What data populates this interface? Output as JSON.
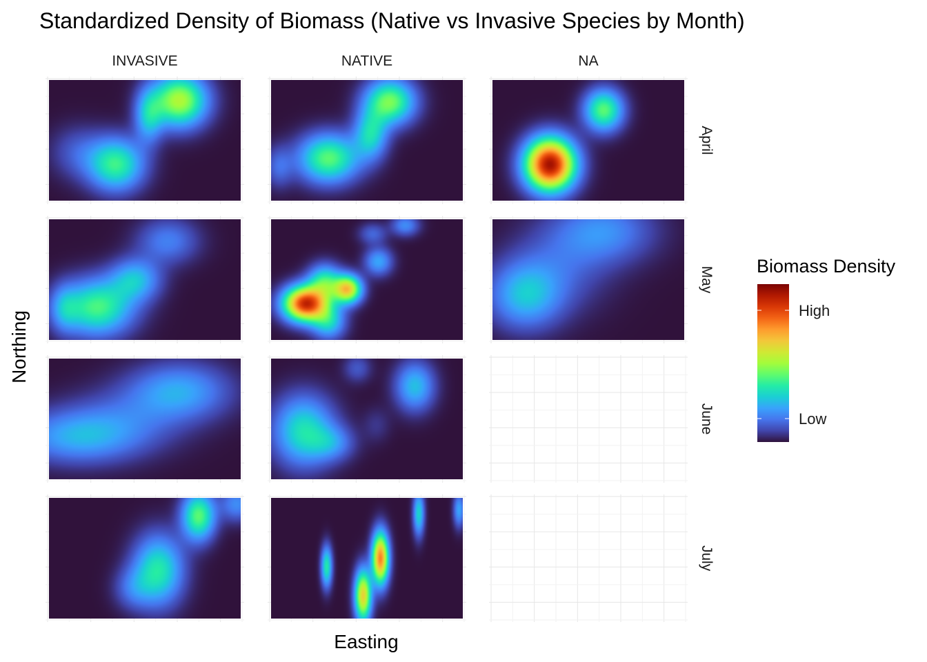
{
  "chart_data": {
    "type": "heatmap",
    "title": "Standardized Density of Biomass (Native vs Invasive Species by Month)",
    "xlabel": "Easting",
    "ylabel": "Northing",
    "columns": [
      "INVASIVE",
      "NATIVE",
      "NA"
    ],
    "rows": [
      "April",
      "May",
      "June",
      "July"
    ],
    "legend": {
      "title": "Biomass Density",
      "labels": [
        "High",
        "Low"
      ],
      "placement": "right"
    },
    "colormap": [
      "#30123b",
      "#4145ab",
      "#4675ed",
      "#39a2fc",
      "#1bcfd4",
      "#24eca6",
      "#61fc6c",
      "#a4fc3b",
      "#d1e834",
      "#f3c63a",
      "#fe9b2d",
      "#f36315",
      "#d93806",
      "#b11901",
      "#7a0403"
    ],
    "grid": true,
    "background_color": "#30123b",
    "panels": [
      {
        "column": "INVASIVE",
        "row": "April",
        "blobs": [
          {
            "x": 0.68,
            "y": 0.83,
            "sx": 0.1,
            "sy": 0.15,
            "a": 0.52
          },
          {
            "x": 0.52,
            "y": 0.7,
            "sx": 0.05,
            "sy": 0.15,
            "a": 0.25
          },
          {
            "x": 0.35,
            "y": 0.3,
            "sx": 0.1,
            "sy": 0.15,
            "a": 0.38
          },
          {
            "x": 0.15,
            "y": 0.4,
            "sx": 0.1,
            "sy": 0.15,
            "a": 0.1
          }
        ]
      },
      {
        "column": "NATIVE",
        "row": "April",
        "blobs": [
          {
            "x": 0.62,
            "y": 0.82,
            "sx": 0.09,
            "sy": 0.13,
            "a": 0.45
          },
          {
            "x": 0.52,
            "y": 0.55,
            "sx": 0.06,
            "sy": 0.14,
            "a": 0.3
          },
          {
            "x": 0.3,
            "y": 0.35,
            "sx": 0.11,
            "sy": 0.14,
            "a": 0.42
          },
          {
            "x": 0.04,
            "y": 0.28,
            "sx": 0.05,
            "sy": 0.12,
            "a": 0.12
          }
        ]
      },
      {
        "column": "NA",
        "row": "April",
        "blobs": [
          {
            "x": 0.3,
            "y": 0.3,
            "sx": 0.09,
            "sy": 0.15,
            "a": 0.95
          },
          {
            "x": 0.58,
            "y": 0.75,
            "sx": 0.07,
            "sy": 0.12,
            "a": 0.42
          }
        ]
      },
      {
        "column": "INVASIVE",
        "row": "May",
        "blobs": [
          {
            "x": 0.25,
            "y": 0.27,
            "sx": 0.13,
            "sy": 0.16,
            "a": 0.4
          },
          {
            "x": 0.45,
            "y": 0.5,
            "sx": 0.09,
            "sy": 0.12,
            "a": 0.25
          },
          {
            "x": 0.62,
            "y": 0.82,
            "sx": 0.11,
            "sy": 0.13,
            "a": 0.16
          },
          {
            "x": 0.08,
            "y": 0.26,
            "sx": 0.05,
            "sy": 0.13,
            "a": 0.15
          }
        ]
      },
      {
        "column": "NATIVE",
        "row": "May",
        "blobs": [
          {
            "x": 0.18,
            "y": 0.3,
            "sx": 0.08,
            "sy": 0.1,
            "a": 0.88
          },
          {
            "x": 0.4,
            "y": 0.42,
            "sx": 0.05,
            "sy": 0.08,
            "a": 0.62
          },
          {
            "x": 0.28,
            "y": 0.48,
            "sx": 0.06,
            "sy": 0.1,
            "a": 0.35
          },
          {
            "x": 0.3,
            "y": 0.15,
            "sx": 0.06,
            "sy": 0.1,
            "a": 0.28
          },
          {
            "x": 0.56,
            "y": 0.65,
            "sx": 0.05,
            "sy": 0.08,
            "a": 0.22
          },
          {
            "x": 0.53,
            "y": 0.88,
            "sx": 0.05,
            "sy": 0.06,
            "a": 0.12
          },
          {
            "x": 0.7,
            "y": 0.95,
            "sx": 0.05,
            "sy": 0.06,
            "a": 0.18
          }
        ]
      },
      {
        "column": "NA",
        "row": "May",
        "blobs": [
          {
            "x": 0.17,
            "y": 0.37,
            "sx": 0.13,
            "sy": 0.19,
            "a": 0.25
          },
          {
            "x": 0.58,
            "y": 0.9,
            "sx": 0.18,
            "sy": 0.18,
            "a": 0.18
          },
          {
            "x": 0.35,
            "y": 0.6,
            "sx": 0.18,
            "sy": 0.25,
            "a": 0.1
          }
        ]
      },
      {
        "column": "INVASIVE",
        "row": "June",
        "blobs": [
          {
            "x": 0.15,
            "y": 0.35,
            "sx": 0.22,
            "sy": 0.15,
            "a": 0.22
          },
          {
            "x": 0.68,
            "y": 0.73,
            "sx": 0.18,
            "sy": 0.16,
            "a": 0.22
          },
          {
            "x": 0.4,
            "y": 0.5,
            "sx": 0.22,
            "sy": 0.18,
            "a": 0.1
          }
        ]
      },
      {
        "column": "NATIVE",
        "row": "June",
        "blobs": [
          {
            "x": 0.17,
            "y": 0.4,
            "sx": 0.11,
            "sy": 0.2,
            "a": 0.33
          },
          {
            "x": 0.32,
            "y": 0.3,
            "sx": 0.08,
            "sy": 0.1,
            "a": 0.15
          },
          {
            "x": 0.75,
            "y": 0.77,
            "sx": 0.07,
            "sy": 0.14,
            "a": 0.26
          },
          {
            "x": 0.45,
            "y": 0.92,
            "sx": 0.05,
            "sy": 0.08,
            "a": 0.1
          },
          {
            "x": 0.55,
            "y": 0.45,
            "sx": 0.05,
            "sy": 0.1,
            "a": 0.05
          }
        ]
      },
      {
        "column": "INVASIVE",
        "row": "July",
        "blobs": [
          {
            "x": 0.57,
            "y": 0.4,
            "sx": 0.09,
            "sy": 0.2,
            "a": 0.35
          },
          {
            "x": 0.78,
            "y": 0.85,
            "sx": 0.06,
            "sy": 0.14,
            "a": 0.42
          },
          {
            "x": 0.44,
            "y": 0.25,
            "sx": 0.07,
            "sy": 0.12,
            "a": 0.12
          },
          {
            "x": 0.98,
            "y": 0.95,
            "sx": 0.06,
            "sy": 0.1,
            "a": 0.18
          }
        ]
      },
      {
        "column": "NATIVE",
        "row": "July",
        "blobs": [
          {
            "x": 0.57,
            "y": 0.5,
            "sx": 0.03,
            "sy": 0.15,
            "a": 0.75
          },
          {
            "x": 0.48,
            "y": 0.19,
            "sx": 0.03,
            "sy": 0.15,
            "a": 0.62
          },
          {
            "x": 0.29,
            "y": 0.43,
            "sx": 0.02,
            "sy": 0.12,
            "a": 0.35
          },
          {
            "x": 0.77,
            "y": 0.87,
            "sx": 0.02,
            "sy": 0.13,
            "a": 0.3
          },
          {
            "x": 0.98,
            "y": 0.9,
            "sx": 0.02,
            "sy": 0.1,
            "a": 0.22
          }
        ]
      },
      {
        "column": "NA",
        "row": "June",
        "blobs": []
      },
      {
        "column": "NA",
        "row": "July",
        "blobs": []
      }
    ]
  }
}
